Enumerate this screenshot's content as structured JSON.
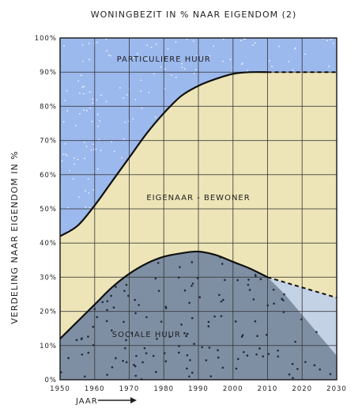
{
  "chart_data": {
    "type": "area",
    "title": "WONINGBEZIT IN % NAAR EIGENDOM (2)",
    "ylabel": "VERDELING NAAR EIGENDOM IN %",
    "xlabel": "JAAR",
    "x_ticks": [
      "1950",
      "1960",
      "1970",
      "1980",
      "1990",
      "2000",
      "2010",
      "2020",
      "2030"
    ],
    "y_ticks": [
      "0%",
      "10%",
      "20%",
      "30%",
      "40%",
      "50%",
      "60%",
      "70%",
      "80%",
      "90%",
      "100%"
    ],
    "xlim": [
      1950,
      2030
    ],
    "ylim": [
      0,
      100
    ],
    "grid": true,
    "series": [
      {
        "name": "SOCIALE HUUR",
        "color": "#7f8fa3",
        "x": [
          1950,
          1955,
          1960,
          1965,
          1970,
          1975,
          1980,
          1985,
          1990,
          1995,
          2000,
          2005,
          2010
        ],
        "values": [
          12,
          17,
          22,
          27,
          31,
          34,
          36,
          37,
          37.5,
          36.5,
          34.5,
          32.5,
          30
        ]
      },
      {
        "name": "EIGENAAR - BEWONER",
        "color": "#ede5b7",
        "x": [
          1950,
          1955,
          1960,
          1965,
          1970,
          1975,
          1980,
          1985,
          1990,
          1995,
          2000,
          2005,
          2010
        ],
        "values": [
          42,
          45,
          51,
          58,
          65,
          72,
          78,
          83,
          86,
          88,
          89.5,
          90,
          90
        ]
      },
      {
        "name": "PARTICULIERE HUUR",
        "color": "#9cb9ee",
        "x": [
          1950,
          2030
        ],
        "values": [
          100,
          100
        ]
      }
    ],
    "projection": {
      "eigenaar_x": [
        2010,
        2030
      ],
      "eigenaar_values": [
        90,
        90
      ],
      "sociale_lower_x": [
        2010,
        2015,
        2020,
        2025,
        2030
      ],
      "sociale_lower_values": [
        30,
        25,
        19,
        13,
        7
      ],
      "sociale_upper_x": [
        2010,
        2020,
        2030
      ],
      "sociale_upper_values": [
        30,
        27,
        24
      ],
      "gap_color": "#c4d2e6"
    }
  }
}
